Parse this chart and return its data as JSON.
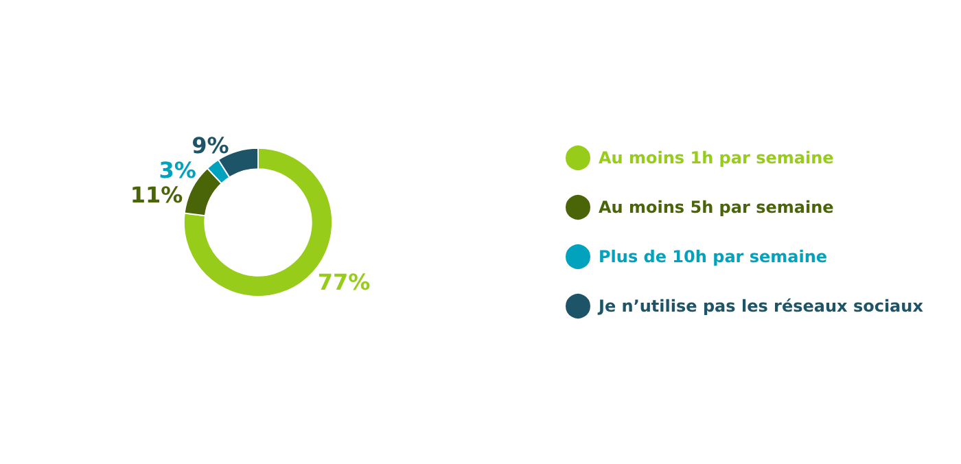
{
  "chart_data": {
    "type": "donut",
    "categories": [
      "Au moins 1h par semaine",
      "Au moins 5h par semaine",
      "Plus de 10h par semaine",
      "Je n’utilise pas les réseaux sociaux"
    ],
    "values": [
      77,
      11,
      3,
      9
    ],
    "value_labels": [
      "77%",
      "11%",
      "3%",
      "9%"
    ],
    "colors": [
      "#97cc1a",
      "#4a6408",
      "#00a2bd",
      "#1e5468"
    ],
    "legend": "right"
  }
}
